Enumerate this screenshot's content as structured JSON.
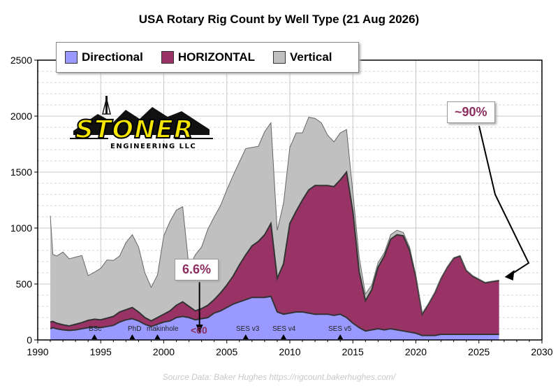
{
  "chart_data": {
    "type": "area",
    "stacked": true,
    "title": "USA Rotary Rig Count by Well Type (21 Aug 2026)",
    "xlabel": "",
    "ylabel": "",
    "xlim": [
      1990,
      2030
    ],
    "ylim": [
      0,
      2500
    ],
    "x_ticks": [
      "1990",
      "1995",
      "2000",
      "2005",
      "2010",
      "2015",
      "2020",
      "2025",
      "2030"
    ],
    "y_ticks": [
      "0",
      "500",
      "1000",
      "1500",
      "2000",
      "2500"
    ],
    "grid": true,
    "legend_position": "top-left",
    "series": [
      {
        "name": "Directional",
        "color": "#9999ff"
      },
      {
        "name": "HORIZONTAL",
        "color": "#993366"
      },
      {
        "name": "Vertical",
        "color": "#c0c0c0"
      }
    ],
    "x": [
      1991,
      1991.2,
      1991.5,
      1992,
      1992.5,
      1993,
      1993.5,
      1994,
      1994.5,
      1995,
      1995.5,
      1996,
      1996.5,
      1997,
      1997.5,
      1998,
      1998.5,
      1999,
      1999.5,
      2000,
      2000.5,
      2001,
      2001.5,
      2002,
      2002.5,
      2003,
      2003.5,
      2004,
      2004.5,
      2005,
      2005.5,
      2006,
      2006.5,
      2007,
      2007.5,
      2008,
      2008.5,
      2009,
      2009.5,
      2010,
      2010.5,
      2011,
      2011.5,
      2012,
      2012.5,
      2013,
      2013.5,
      2014,
      2014.5,
      2015,
      2015.5,
      2016,
      2016.5,
      2017,
      2017.5,
      2018,
      2018.5,
      2019,
      2019.5,
      2020,
      2020.5,
      2021,
      2021.5,
      2022,
      2022.5,
      2023,
      2023.5,
      2024,
      2024.5,
      2025,
      2025.5,
      2026,
      2026.6
    ],
    "directional": [
      100,
      110,
      100,
      90,
      85,
      90,
      100,
      110,
      115,
      110,
      120,
      130,
      160,
      180,
      190,
      170,
      140,
      120,
      140,
      160,
      170,
      200,
      210,
      200,
      180,
      190,
      200,
      240,
      260,
      290,
      320,
      340,
      360,
      380,
      380,
      380,
      390,
      250,
      230,
      240,
      250,
      250,
      240,
      230,
      230,
      230,
      220,
      230,
      200,
      150,
      110,
      80,
      90,
      100,
      90,
      100,
      90,
      80,
      70,
      60,
      40,
      40,
      40,
      50,
      50,
      50,
      50,
      50,
      50,
      50,
      50,
      50,
      50
    ],
    "horizontal": [
      60,
      55,
      50,
      45,
      40,
      50,
      55,
      65,
      70,
      70,
      75,
      80,
      90,
      90,
      100,
      80,
      60,
      50,
      60,
      70,
      90,
      110,
      130,
      100,
      80,
      90,
      110,
      120,
      160,
      200,
      250,
      330,
      400,
      460,
      500,
      560,
      650,
      300,
      450,
      800,
      900,
      1000,
      1100,
      1150,
      1150,
      1150,
      1150,
      1200,
      1300,
      1000,
      500,
      270,
      360,
      550,
      660,
      800,
      850,
      850,
      730,
      500,
      190,
      280,
      380,
      500,
      600,
      680,
      700,
      570,
      520,
      490,
      460,
      470,
      480
    ],
    "vertical": [
      950,
      600,
      600,
      650,
      600,
      600,
      600,
      400,
      420,
      460,
      520,
      500,
      500,
      600,
      650,
      580,
      400,
      300,
      380,
      700,
      800,
      850,
      850,
      350,
      500,
      550,
      680,
      740,
      780,
      850,
      900,
      920,
      950,
      880,
      850,
      920,
      900,
      430,
      540,
      680,
      700,
      600,
      650,
      600,
      560,
      450,
      400,
      420,
      380,
      170,
      130,
      60,
      40,
      40,
      30,
      40,
      40,
      30,
      30,
      20,
      10,
      5,
      5,
      5,
      5,
      5,
      5,
      5,
      5,
      5,
      5,
      5,
      5
    ],
    "annotations": [
      {
        "text": "6.6%",
        "x": 2003,
        "y": 300
      },
      {
        "text": "<60",
        "x": 2003
      },
      {
        "text": "~90%",
        "x": 2026.6,
        "y": 550
      }
    ],
    "markers": [
      {
        "text": "BSc",
        "x": 1994.5
      },
      {
        "text": "PhD",
        "x": 1997.5
      },
      {
        "text": "makinhole",
        "x": 1999.5
      },
      {
        "text": "SES v3",
        "x": 2006.5
      },
      {
        "text": "SES v4",
        "x": 2009.5
      },
      {
        "text": "SES v5",
        "x": 2014
      }
    ]
  },
  "logo": {
    "word": "STONER",
    "sub": "ENGINEERING LLC"
  },
  "source": "Source Data: Baker Hughes https://rigcount.bakerhughes.com/"
}
